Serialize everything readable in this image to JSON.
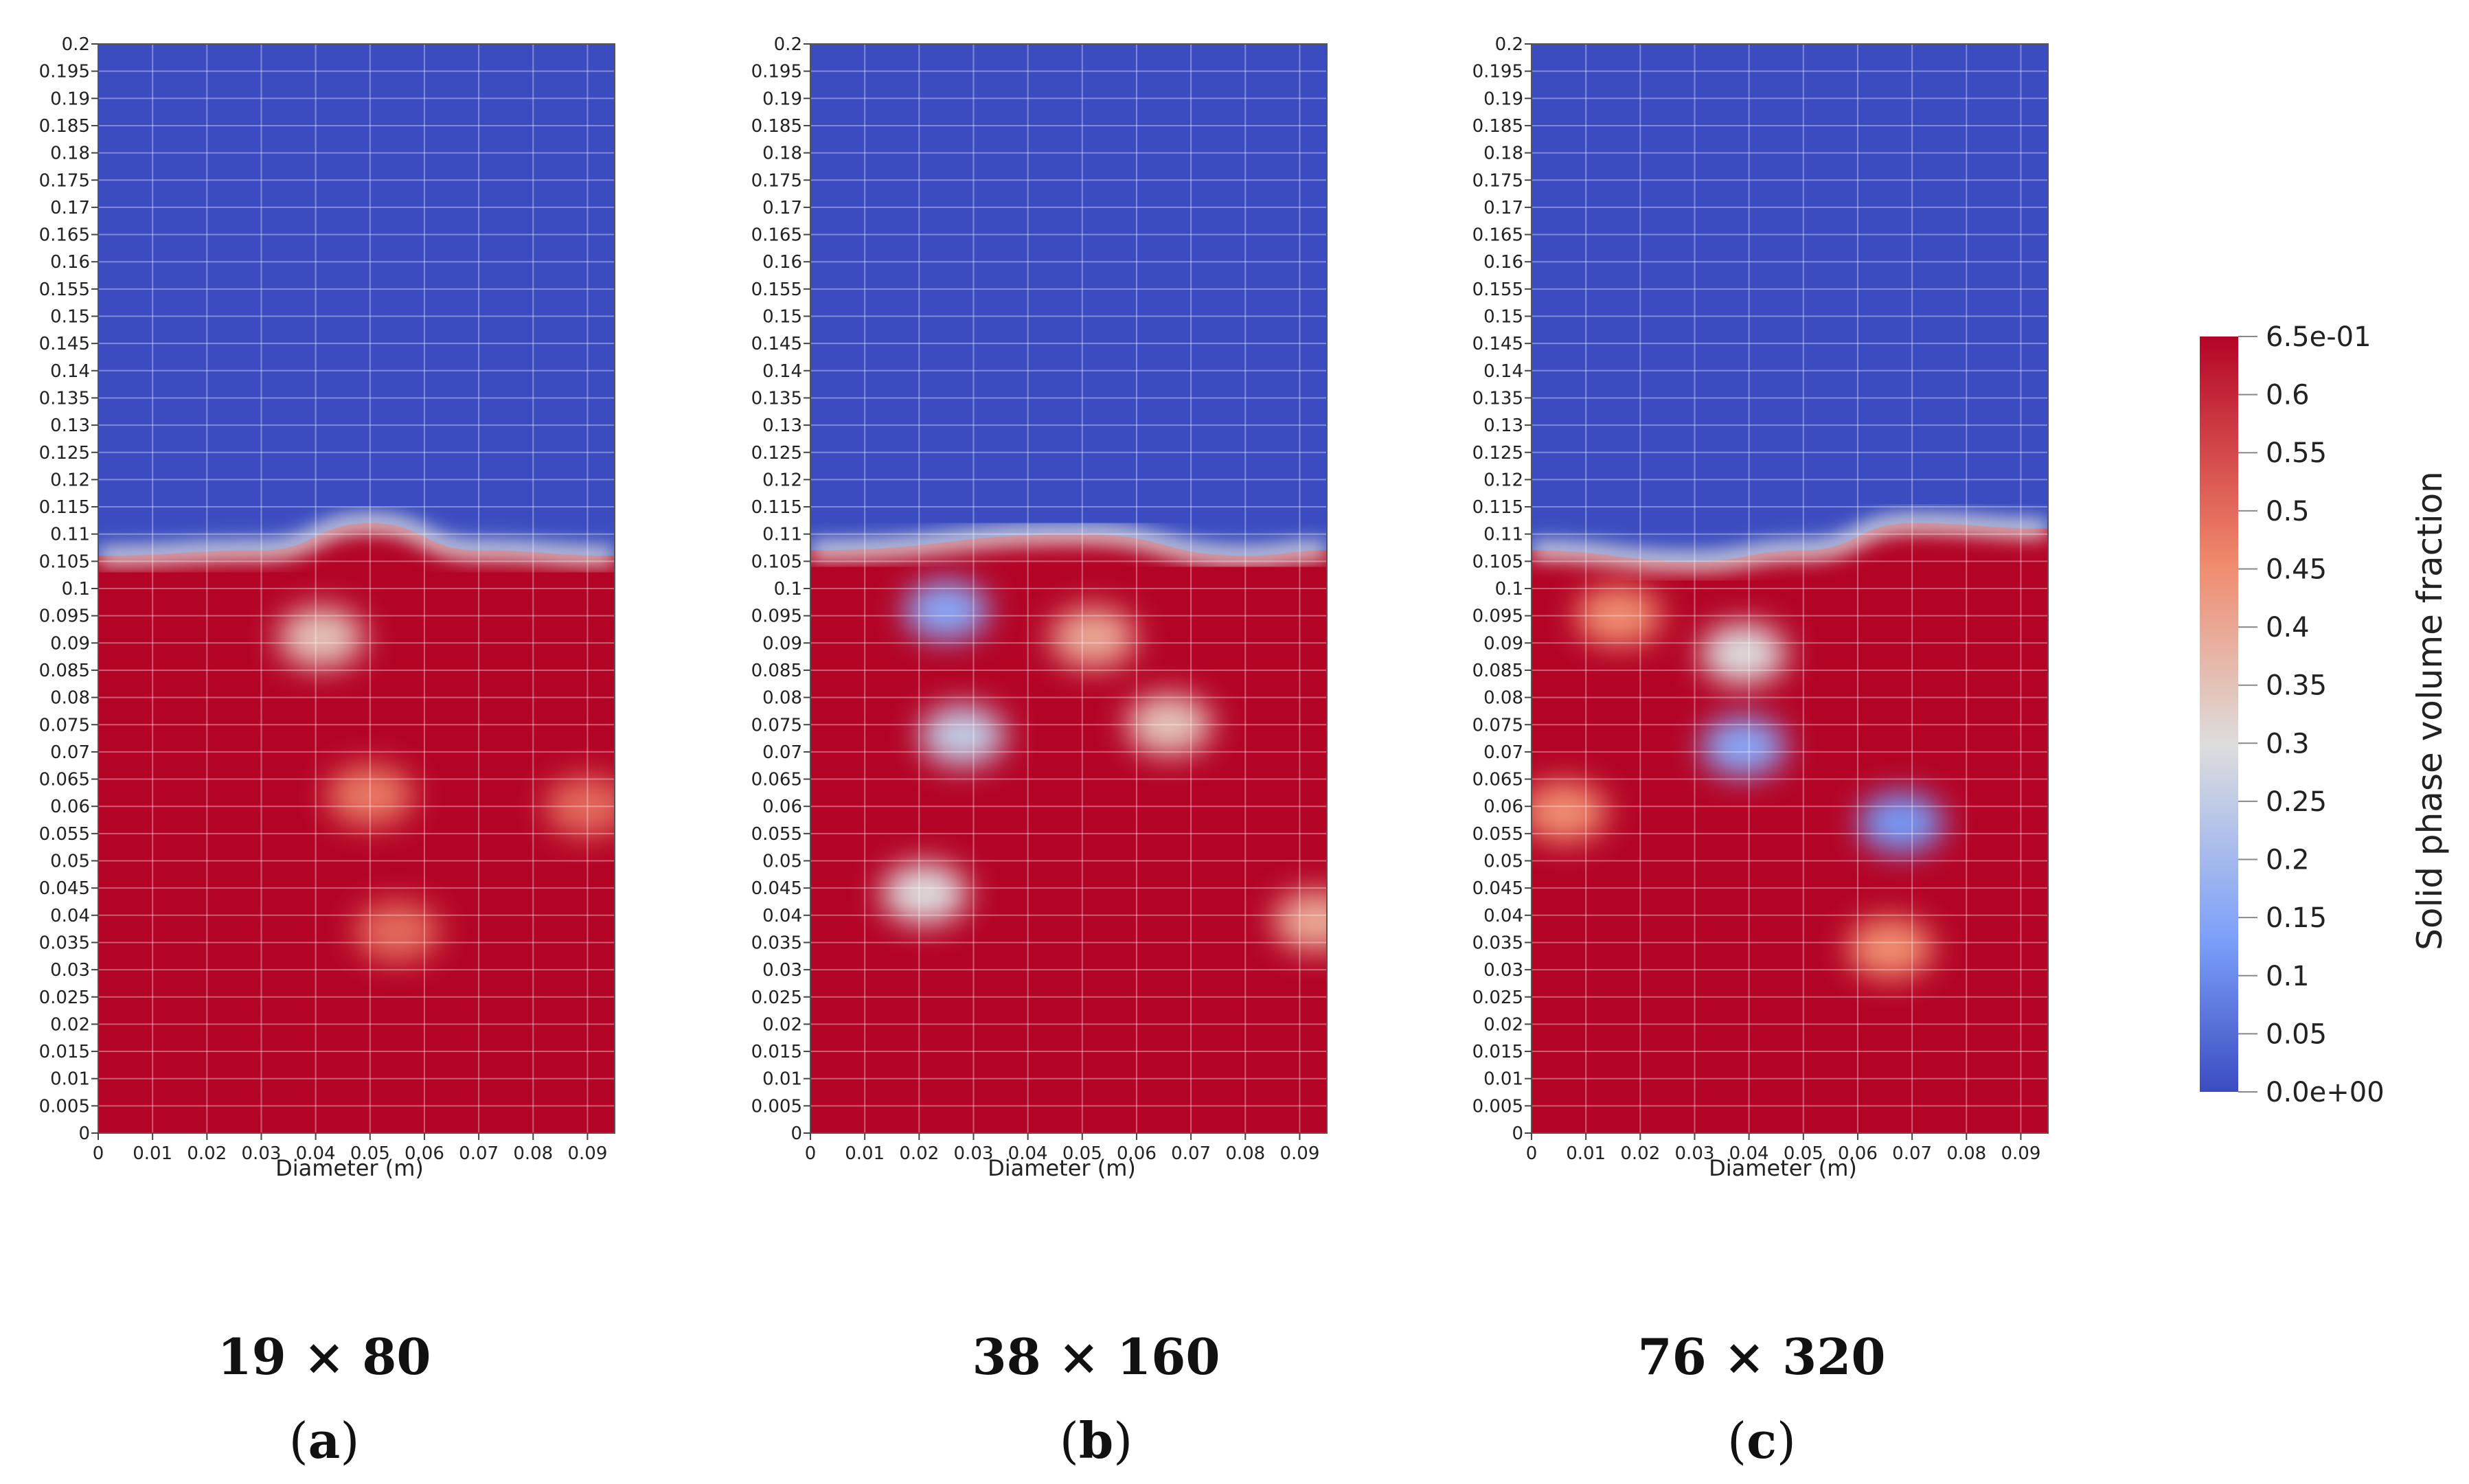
{
  "chart_data": [
    {
      "type": "heatmap",
      "caption": "19 × 80",
      "panel_label": "a",
      "xlabel": "Diameter (m)",
      "x_ticks": [
        "0",
        "0.01",
        "0.02",
        "0.03",
        "0.04",
        "0.05",
        "0.06",
        "0.07",
        "0.08",
        "0.09"
      ],
      "y_ticks": [
        "0",
        "0.005",
        "0.01",
        "0.015",
        "0.02",
        "0.025",
        "0.03",
        "0.035",
        "0.04",
        "0.045",
        "0.05",
        "0.055",
        "0.06",
        "0.065",
        "0.07",
        "0.075",
        "0.08",
        "0.085",
        "0.09",
        "0.095",
        "0.1",
        "0.105",
        "0.11",
        "0.115",
        "0.12",
        "0.125",
        "0.13",
        "0.135",
        "0.14",
        "0.145",
        "0.15",
        "0.155",
        "0.16",
        "0.165",
        "0.17",
        "0.175",
        "0.18",
        "0.185",
        "0.19",
        "0.195",
        "0.2"
      ],
      "xlim": [
        0,
        0.095
      ],
      "ylim": [
        0,
        0.2
      ],
      "bed_surface": [
        [
          0,
          0.106
        ],
        [
          0.03,
          0.107
        ],
        [
          0.05,
          0.112
        ],
        [
          0.07,
          0.107
        ],
        [
          0.095,
          0.106
        ]
      ],
      "voids": [
        {
          "x": 0.041,
          "y": 0.091,
          "value": 0.35
        },
        {
          "x": 0.05,
          "y": 0.062,
          "value": 0.48
        },
        {
          "x": 0.09,
          "y": 0.06,
          "value": 0.5
        },
        {
          "x": 0.055,
          "y": 0.037,
          "value": 0.5
        }
      ]
    },
    {
      "type": "heatmap",
      "caption": "38 × 160",
      "panel_label": "b",
      "xlabel": "Diameter (m)",
      "x_ticks": [
        "0",
        "0.01",
        "0.02",
        "0.03",
        "0.04",
        "0.05",
        "0.06",
        "0.07",
        "0.08",
        "0.09"
      ],
      "y_ticks": [
        "0",
        "0.005",
        "0.01",
        "0.015",
        "0.02",
        "0.025",
        "0.03",
        "0.035",
        "0.04",
        "0.045",
        "0.05",
        "0.055",
        "0.06",
        "0.065",
        "0.07",
        "0.075",
        "0.08",
        "0.085",
        "0.09",
        "0.095",
        "0.1",
        "0.105",
        "0.11",
        "0.115",
        "0.12",
        "0.125",
        "0.13",
        "0.135",
        "0.14",
        "0.145",
        "0.15",
        "0.155",
        "0.16",
        "0.165",
        "0.17",
        "0.175",
        "0.18",
        "0.185",
        "0.19",
        "0.195",
        "0.2"
      ],
      "xlim": [
        0,
        0.095
      ],
      "ylim": [
        0,
        0.2
      ],
      "bed_surface": [
        [
          0,
          0.107
        ],
        [
          0.05,
          0.11
        ],
        [
          0.08,
          0.106
        ],
        [
          0.095,
          0.107
        ]
      ],
      "voids": [
        {
          "x": 0.025,
          "y": 0.096,
          "value": 0.15
        },
        {
          "x": 0.052,
          "y": 0.091,
          "value": 0.4
        },
        {
          "x": 0.028,
          "y": 0.073,
          "value": 0.25
        },
        {
          "x": 0.066,
          "y": 0.075,
          "value": 0.35
        },
        {
          "x": 0.021,
          "y": 0.044,
          "value": 0.3
        },
        {
          "x": 0.093,
          "y": 0.039,
          "value": 0.4
        }
      ]
    },
    {
      "type": "heatmap",
      "caption": "76 × 320",
      "panel_label": "c",
      "xlabel": "Diameter (m)",
      "x_ticks": [
        "0",
        "0.01",
        "0.02",
        "0.03",
        "0.04",
        "0.05",
        "0.06",
        "0.07",
        "0.08",
        "0.09"
      ],
      "y_ticks": [
        "0",
        "0.005",
        "0.01",
        "0.015",
        "0.02",
        "0.025",
        "0.03",
        "0.035",
        "0.04",
        "0.045",
        "0.05",
        "0.055",
        "0.06",
        "0.065",
        "0.07",
        "0.075",
        "0.08",
        "0.085",
        "0.09",
        "0.095",
        "0.1",
        "0.105",
        "0.11",
        "0.115",
        "0.12",
        "0.125",
        "0.13",
        "0.135",
        "0.14",
        "0.145",
        "0.15",
        "0.155",
        "0.16",
        "0.165",
        "0.17",
        "0.175",
        "0.18",
        "0.185",
        "0.19",
        "0.195",
        "0.2"
      ],
      "xlim": [
        0,
        0.095
      ],
      "ylim": [
        0,
        0.2
      ],
      "bed_surface": [
        [
          0,
          0.107
        ],
        [
          0.03,
          0.105
        ],
        [
          0.05,
          0.107
        ],
        [
          0.07,
          0.112
        ],
        [
          0.095,
          0.111
        ]
      ],
      "voids": [
        {
          "x": 0.016,
          "y": 0.095,
          "value": 0.45
        },
        {
          "x": 0.039,
          "y": 0.088,
          "value": 0.3
        },
        {
          "x": 0.039,
          "y": 0.071,
          "value": 0.15
        },
        {
          "x": 0.068,
          "y": 0.057,
          "value": 0.12
        },
        {
          "x": 0.006,
          "y": 0.059,
          "value": 0.45
        },
        {
          "x": 0.066,
          "y": 0.034,
          "value": 0.45
        }
      ]
    }
  ],
  "colorbar": {
    "title": "Solid phase volume fraction",
    "tick_labels": [
      "6.5e-01",
      "0.6",
      "0.55",
      "0.5",
      "0.45",
      "0.4",
      "0.35",
      "0.3",
      "0.25",
      "0.2",
      "0.15",
      "0.1",
      "0.05",
      "0.0e+00"
    ],
    "range": [
      0,
      0.65
    ],
    "colors": {
      "low": "#3b4cc0",
      "mid": "#dddddd",
      "high": "#b40426"
    }
  }
}
